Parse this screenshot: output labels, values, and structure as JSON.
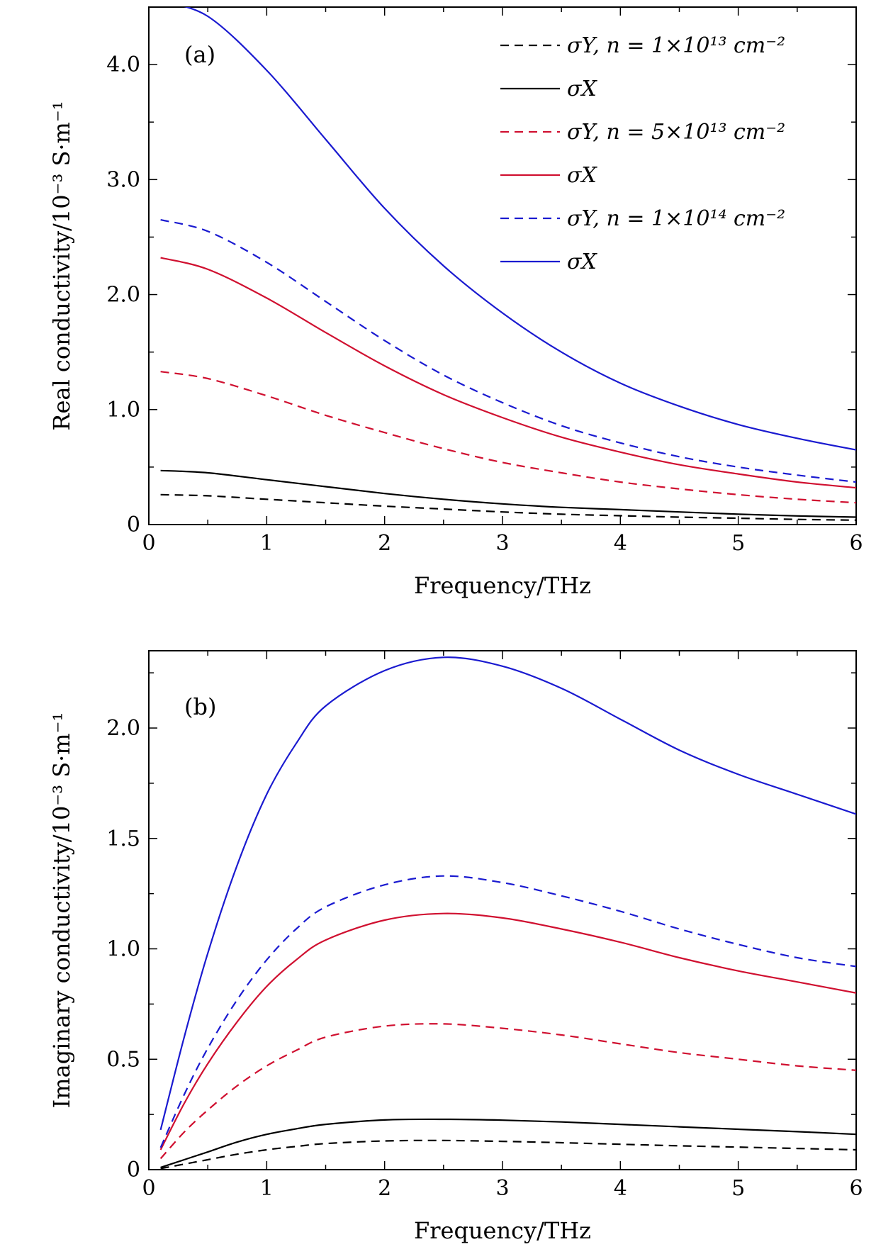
{
  "chart_data": [
    {
      "type": "line",
      "panel_label": "(a)",
      "xlabel": "Frequency/THz",
      "ylabel": "Real conductivity/10⁻³ S·m⁻¹",
      "xlim": [
        0,
        6
      ],
      "ylim": [
        0,
        4.5
      ],
      "xticks": [
        0,
        1,
        2,
        3,
        4,
        5,
        6
      ],
      "xtick_labels": [
        "0",
        "1",
        "2",
        "3",
        "4",
        "5",
        "6"
      ],
      "yticks": [
        0,
        1,
        2,
        3,
        4
      ],
      "ytick_labels": [
        "0",
        "1.0",
        "2.0",
        "3.0",
        "4.0"
      ],
      "legend_position": "top-right",
      "legend": [
        {
          "label": "σY, n = 1×10¹³ cm⁻²",
          "color": "#000000",
          "dash": true
        },
        {
          "label": "σX",
          "color": "#000000",
          "dash": false
        },
        {
          "label": "σY, n = 5×10¹³ cm⁻²",
          "color": "#d01030",
          "dash": true
        },
        {
          "label": "σX",
          "color": "#d01030",
          "dash": false
        },
        {
          "label": "σY, n = 1×10¹⁴ cm⁻²",
          "color": "#1a1ad0",
          "dash": true
        },
        {
          "label": "σX",
          "color": "#1a1ad0",
          "dash": false
        }
      ],
      "x": [
        0.1,
        0.5,
        1.0,
        1.5,
        2.0,
        2.5,
        3.0,
        3.5,
        4.0,
        4.5,
        5.0,
        5.5,
        6.0
      ],
      "series": [
        {
          "color": "#000000",
          "dash": true,
          "values": [
            0.26,
            0.25,
            0.22,
            0.19,
            0.16,
            0.135,
            0.11,
            0.09,
            0.077,
            0.065,
            0.055,
            0.045,
            0.038
          ]
        },
        {
          "color": "#000000",
          "dash": false,
          "values": [
            0.47,
            0.45,
            0.39,
            0.33,
            0.27,
            0.22,
            0.18,
            0.15,
            0.13,
            0.11,
            0.09,
            0.075,
            0.065
          ]
        },
        {
          "color": "#d01030",
          "dash": true,
          "values": [
            1.33,
            1.27,
            1.12,
            0.95,
            0.8,
            0.66,
            0.54,
            0.45,
            0.37,
            0.31,
            0.26,
            0.22,
            0.19
          ]
        },
        {
          "color": "#d01030",
          "dash": false,
          "values": [
            2.32,
            2.22,
            1.97,
            1.67,
            1.38,
            1.13,
            0.93,
            0.76,
            0.63,
            0.52,
            0.44,
            0.37,
            0.32
          ]
        },
        {
          "color": "#1a1ad0",
          "dash": true,
          "values": [
            2.65,
            2.55,
            2.28,
            1.94,
            1.6,
            1.3,
            1.06,
            0.86,
            0.71,
            0.59,
            0.5,
            0.43,
            0.37
          ]
        },
        {
          "color": "#1a1ad0",
          "dash": false,
          "values": [
            4.55,
            4.42,
            3.95,
            3.35,
            2.75,
            2.25,
            1.84,
            1.5,
            1.23,
            1.03,
            0.87,
            0.75,
            0.65
          ]
        }
      ]
    },
    {
      "type": "line",
      "panel_label": "(b)",
      "xlabel": "Frequency/THz",
      "ylabel": "Imaginary conductivity/10⁻³ S·m⁻¹",
      "xlim": [
        0,
        6
      ],
      "ylim": [
        0,
        2.35
      ],
      "xticks": [
        0,
        1,
        2,
        3,
        4,
        5,
        6
      ],
      "xtick_labels": [
        "0",
        "1",
        "2",
        "3",
        "4",
        "5",
        "6"
      ],
      "yticks": [
        0,
        0.5,
        1.0,
        1.5,
        2.0
      ],
      "ytick_labels": [
        "0",
        "0.5",
        "1.0",
        "1.5",
        "2.0"
      ],
      "x": [
        0.1,
        0.3,
        0.5,
        0.75,
        1.0,
        1.25,
        1.5,
        2.0,
        2.5,
        3.0,
        3.5,
        4.0,
        4.5,
        5.0,
        5.5,
        6.0
      ],
      "series": [
        {
          "color": "#000000",
          "dash": true,
          "values": [
            0.005,
            0.025,
            0.045,
            0.07,
            0.09,
            0.105,
            0.118,
            0.13,
            0.132,
            0.128,
            0.122,
            0.115,
            0.108,
            0.102,
            0.096,
            0.09
          ]
        },
        {
          "color": "#000000",
          "dash": false,
          "values": [
            0.01,
            0.045,
            0.08,
            0.125,
            0.16,
            0.185,
            0.205,
            0.225,
            0.228,
            0.224,
            0.216,
            0.205,
            0.194,
            0.183,
            0.172,
            0.16
          ]
        },
        {
          "color": "#d01030",
          "dash": true,
          "values": [
            0.05,
            0.17,
            0.27,
            0.38,
            0.47,
            0.54,
            0.6,
            0.65,
            0.66,
            0.64,
            0.61,
            0.57,
            0.53,
            0.5,
            0.47,
            0.45
          ]
        },
        {
          "color": "#d01030",
          "dash": false,
          "values": [
            0.09,
            0.3,
            0.48,
            0.67,
            0.83,
            0.95,
            1.04,
            1.13,
            1.16,
            1.14,
            1.09,
            1.03,
            0.96,
            0.9,
            0.85,
            0.8
          ]
        },
        {
          "color": "#1a1ad0",
          "dash": true,
          "values": [
            0.1,
            0.34,
            0.55,
            0.77,
            0.95,
            1.09,
            1.19,
            1.29,
            1.33,
            1.3,
            1.24,
            1.17,
            1.09,
            1.02,
            0.96,
            0.92
          ]
        },
        {
          "color": "#1a1ad0",
          "dash": false,
          "values": [
            0.18,
            0.6,
            0.98,
            1.38,
            1.7,
            1.93,
            2.1,
            2.26,
            2.32,
            2.28,
            2.18,
            2.04,
            1.9,
            1.79,
            1.7,
            1.61
          ]
        }
      ]
    }
  ]
}
